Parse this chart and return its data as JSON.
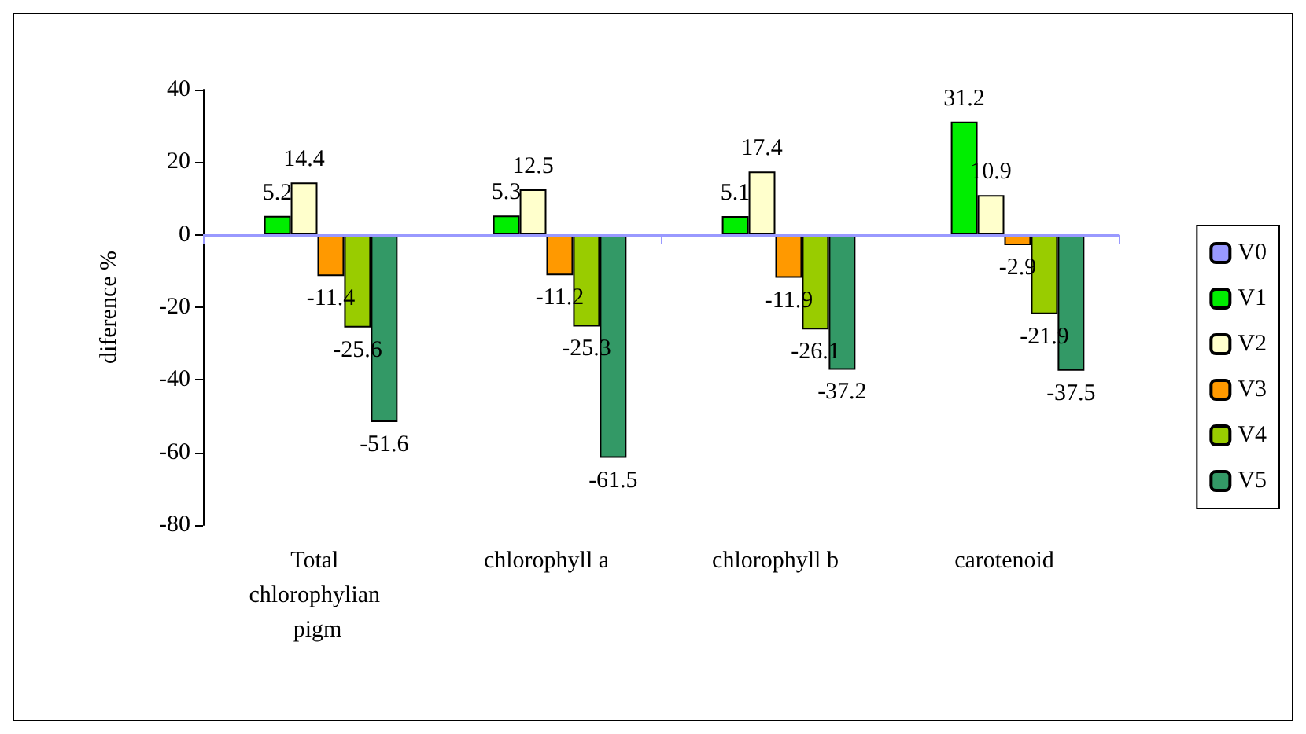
{
  "chart_data": {
    "type": "bar",
    "ylabel": "diference %",
    "categories": [
      "Total chlorophylian pigm",
      "chlorophyll a",
      "chlorophyll b",
      "carotenoid"
    ],
    "series": [
      {
        "name": "V0",
        "color": "#9999ff",
        "values": [
          0,
          0,
          0,
          0
        ],
        "value_labels": [
          null,
          null,
          null,
          null
        ]
      },
      {
        "name": "V1",
        "color": "#00ee00",
        "values": [
          5.2,
          5.3,
          5.1,
          31.2
        ],
        "value_labels": [
          "5.2",
          "5.3",
          "5.1",
          "31.2"
        ]
      },
      {
        "name": "V2",
        "color": "#ffffcc",
        "values": [
          14.4,
          12.5,
          17.4,
          10.9
        ],
        "value_labels": [
          "14.4",
          "12.5",
          "17.4",
          "10.9"
        ]
      },
      {
        "name": "V3",
        "color": "#ff9900",
        "values": [
          -11.4,
          -11.2,
          -11.9,
          -2.9
        ],
        "value_labels": [
          "-11.4",
          "-11.2",
          "-11.9",
          "-2.9"
        ]
      },
      {
        "name": "V4",
        "color": "#99cc00",
        "values": [
          -25.6,
          -25.3,
          -26.1,
          -21.9
        ],
        "value_labels": [
          "-25.6",
          "-25.3",
          "-26.1",
          "-21.9"
        ]
      },
      {
        "name": "V5",
        "color": "#339966",
        "values": [
          -51.6,
          -61.5,
          -37.2,
          -37.5
        ],
        "value_labels": [
          "-51.6",
          "-61.5",
          "-37.2",
          "-37.5"
        ]
      }
    ],
    "ref_lines": [
      {
        "axis": "y",
        "value": 0,
        "color": "#9999ff"
      }
    ],
    "ylim": [
      -80,
      40
    ],
    "yticks": [
      -80,
      -60,
      -40,
      -20,
      0,
      20,
      40
    ],
    "grid": false,
    "legend": "right"
  }
}
